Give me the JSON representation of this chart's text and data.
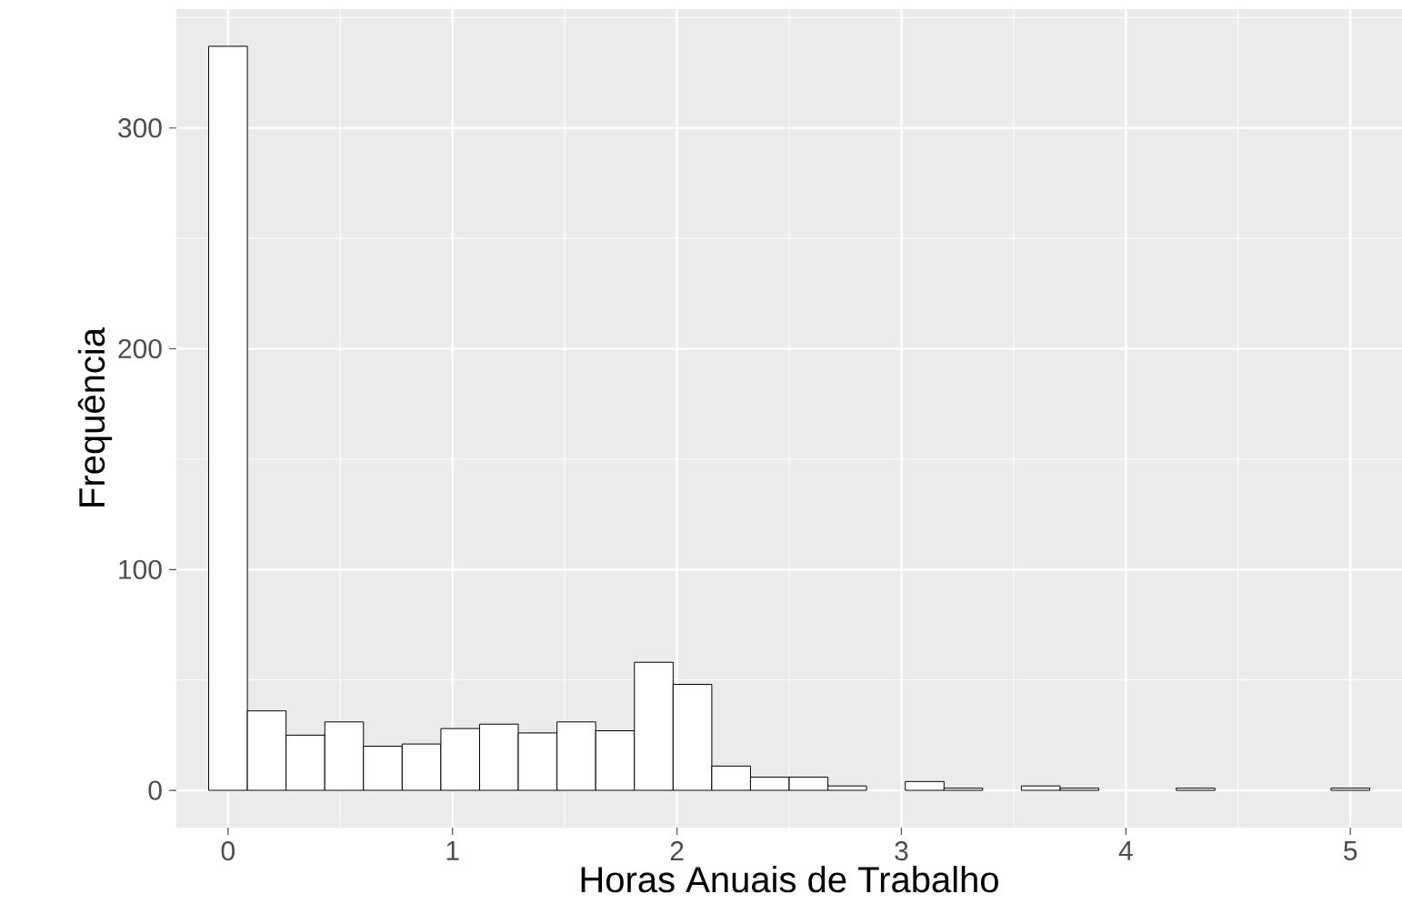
{
  "chart_data": {
    "type": "histogram",
    "xlabel": "Horas Anuais de Trabalho",
    "ylabel": "Frequência",
    "bins": [
      -0.0862,
      0.0862,
      0.2586,
      0.431,
      0.6034,
      0.7759,
      0.9483,
      1.1207,
      1.2931,
      1.4655,
      1.6379,
      1.8103,
      1.9828,
      2.1552,
      2.3276,
      2.5,
      2.6724,
      2.8448,
      3.0172,
      3.1897,
      3.3621,
      3.5345,
      3.7069,
      3.8793,
      4.0517,
      4.2241,
      4.3966,
      4.569,
      4.7414,
      4.9138,
      5.0862
    ],
    "values": [
      337,
      36,
      25,
      31,
      20,
      21,
      28,
      30,
      26,
      31,
      27,
      58,
      48,
      11,
      6,
      6,
      2,
      0,
      4,
      1,
      0,
      2,
      1,
      0,
      0,
      1,
      0,
      0,
      0,
      1
    ],
    "color": "#ffffff",
    "xlim": [
      -0.23,
      5.23
    ],
    "ylim": [
      -16.85,
      353.85
    ],
    "xticks": [
      0,
      1,
      2,
      3,
      4,
      5
    ],
    "yticks": [
      0,
      100,
      200,
      300
    ],
    "grid": true
  }
}
